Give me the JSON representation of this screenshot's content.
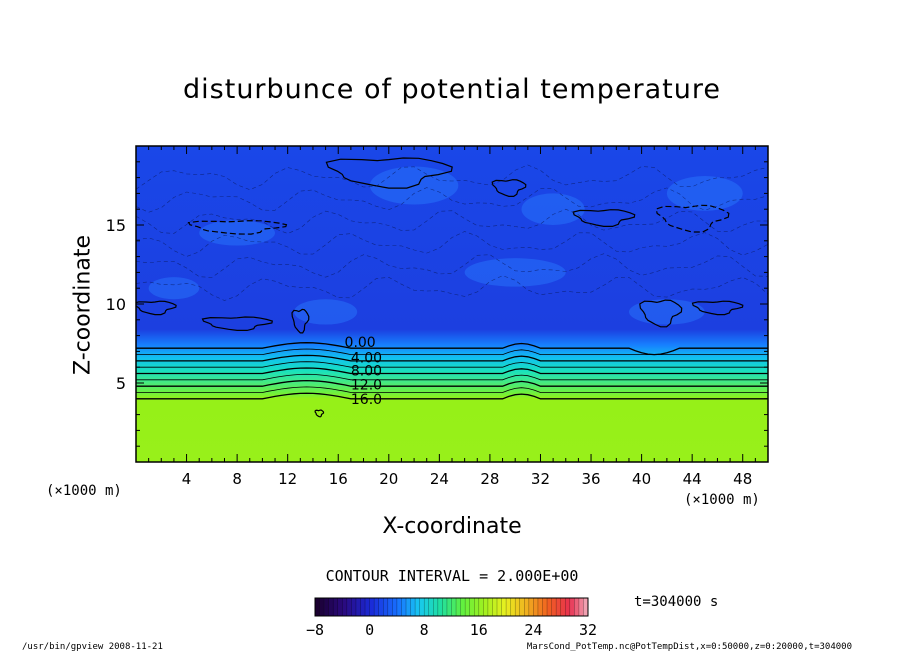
{
  "chart_data": {
    "type": "heatmap",
    "title": "disturbunce of potential temperature",
    "xlabel": "X-coordinate",
    "ylabel": "Z-coordinate",
    "x_unit": "(×1000 m)",
    "y_unit": "(×1000 m)",
    "xlim": [
      0,
      50
    ],
    "ylim": [
      0,
      20
    ],
    "x_ticks": [
      4,
      8,
      12,
      16,
      20,
      24,
      28,
      32,
      36,
      40,
      44,
      48
    ],
    "y_ticks": [
      5,
      10,
      15
    ],
    "contour_labels": [
      {
        "label": "0.00",
        "x": 16.5,
        "z": 7.6
      },
      {
        "label": "4.00",
        "x": 17.0,
        "z": 6.6
      },
      {
        "label": "8.00",
        "x": 17.0,
        "z": 5.8
      },
      {
        "label": "12.0",
        "x": 17.0,
        "z": 4.9
      },
      {
        "label": "16.0",
        "x": 17.0,
        "z": 4.0
      }
    ],
    "contour_levels_z": [
      {
        "z": 7.2,
        "value": 0
      },
      {
        "z": 6.8,
        "value": 2
      },
      {
        "z": 6.4,
        "value": 4
      },
      {
        "z": 6.0,
        "value": 6
      },
      {
        "z": 5.6,
        "value": 8
      },
      {
        "z": 5.2,
        "value": 10
      },
      {
        "z": 4.8,
        "value": 12
      },
      {
        "z": 4.4,
        "value": 14
      },
      {
        "z": 4.0,
        "value": 16
      }
    ],
    "contour_interval": "CONTOUR INTERVAL = 2.000E+00",
    "colorbar": {
      "min": -8,
      "max": 32,
      "tick_labels": [
        "−8",
        "0",
        "8",
        "16",
        "24",
        "32"
      ],
      "tick_values": [
        -8,
        0,
        8,
        16,
        24,
        32
      ]
    },
    "time_label": "t=304000 s"
  },
  "footer": {
    "left": "/usr/bin/gpview   2008-11-21",
    "right": "MarsCond_PotTemp.nc@PotTempDist,x=0:50000,z=0:20000,t=304000"
  }
}
